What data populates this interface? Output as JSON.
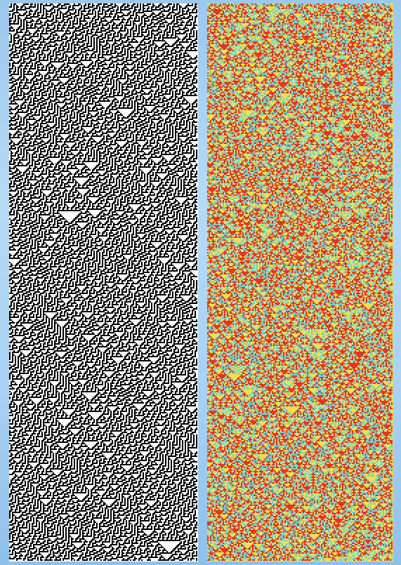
{
  "background": {
    "top_color": "#9cc8ec",
    "bottom_color": "#8fc0ea"
  },
  "panels": [
    {
      "name": "cellular-automaton-black-white",
      "palette": [
        "#ffffff",
        "#000000"
      ]
    },
    {
      "name": "cellular-automaton-color",
      "palette": [
        "#f2e24a",
        "#e8341f",
        "#6fcfd0"
      ]
    }
  ]
}
